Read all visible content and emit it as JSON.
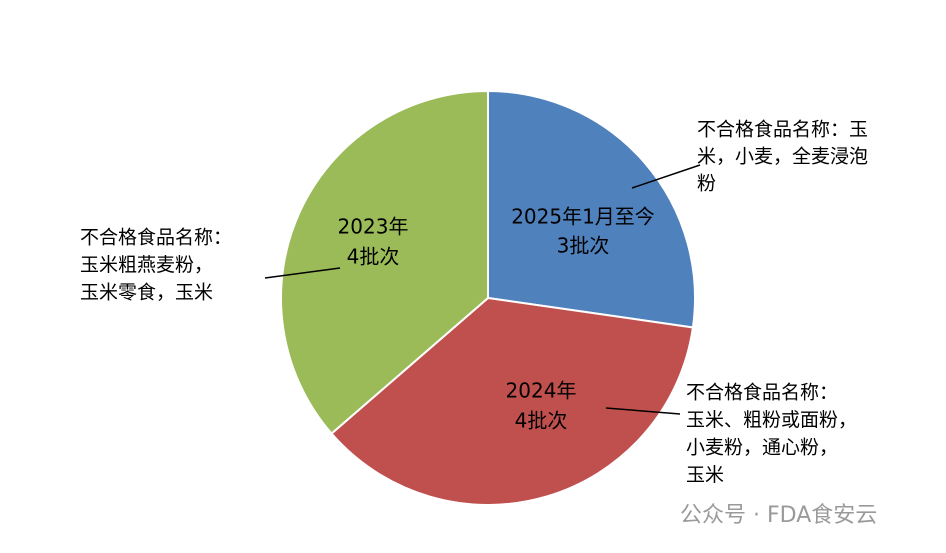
{
  "chart_data": {
    "type": "pie",
    "categories": [
      "2025年1月至今",
      "2024年",
      "2023年"
    ],
    "values": [
      3,
      4,
      4
    ],
    "value_labels": [
      "3批次",
      "4批次",
      "4批次"
    ],
    "colors": [
      "#4f81bd",
      "#c0504d",
      "#9bbb59"
    ],
    "annotations": [
      [
        "不合格食品名称：玉",
        "米，小麦，全麦浸泡",
        "粉"
      ],
      [
        "不合格食品名称：",
        "玉米、粗粉或面粉，",
        "小麦粉，通心粉，",
        "玉米"
      ],
      [
        "不合格食品名称：",
        "玉米粗燕麦粉，",
        "玉米零食，玉米"
      ]
    ],
    "watermark": "公众号 · FDA食安云"
  }
}
